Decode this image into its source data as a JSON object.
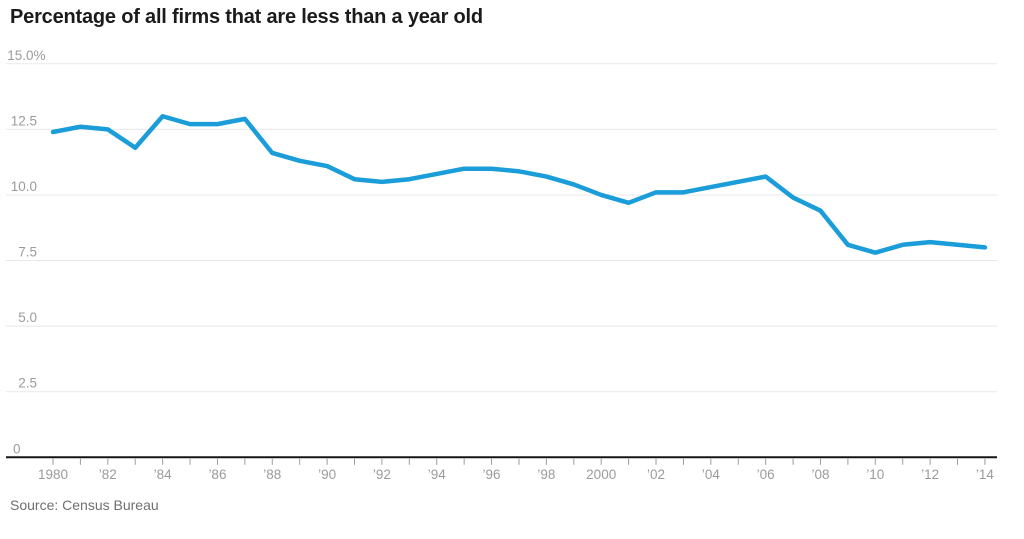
{
  "page": {
    "title": "Percentage of all firms that are less than a year old",
    "source": "Source: Census Bureau"
  },
  "colors": {
    "line": "#1a9dd9",
    "grid": "#e8e8e8",
    "axis": "#161616",
    "tick": "#9b9b9b",
    "tick_label": "#9b9b9b",
    "title_text": "#1b1b1b",
    "source_text": "#6f6f6f",
    "background": "#ffffff"
  },
  "chart_data": {
    "type": "line",
    "title": "Percentage of all firms that are less than a year old",
    "xlabel": "",
    "ylabel": "",
    "legend": "none",
    "grid": "horizontal",
    "ylim": [
      0,
      15
    ],
    "xlim": [
      1980,
      2014
    ],
    "x": [
      1980,
      1981,
      1982,
      1983,
      1984,
      1985,
      1986,
      1987,
      1988,
      1989,
      1990,
      1991,
      1992,
      1993,
      1994,
      1995,
      1996,
      1997,
      1998,
      1999,
      2000,
      2001,
      2002,
      2003,
      2004,
      2005,
      2006,
      2007,
      2008,
      2009,
      2010,
      2011,
      2012,
      2013,
      2014
    ],
    "values": [
      12.4,
      12.6,
      12.5,
      11.8,
      13.0,
      12.7,
      12.7,
      12.9,
      11.6,
      11.3,
      11.1,
      10.6,
      10.5,
      10.6,
      10.8,
      11.0,
      11.0,
      10.9,
      10.7,
      10.4,
      10.0,
      9.7,
      10.1,
      10.1,
      10.3,
      10.5,
      10.7,
      9.9,
      9.4,
      8.1,
      7.8,
      8.1,
      8.2,
      8.1,
      8.0
    ],
    "series_name": "Percentage of all firms less than a year old",
    "y_ticks": [
      {
        "value": 15,
        "label": "15.0%"
      },
      {
        "value": 12.5,
        "label": "12.5"
      },
      {
        "value": 10,
        "label": "10.0"
      },
      {
        "value": 7.5,
        "label": "7.5"
      },
      {
        "value": 5,
        "label": "5.0"
      },
      {
        "value": 2.5,
        "label": "2.5"
      },
      {
        "value": 0,
        "label": "0"
      }
    ],
    "x_tick_labels": [
      {
        "year": 1980,
        "label": "1980"
      },
      {
        "year": 1982,
        "label": "’82"
      },
      {
        "year": 1984,
        "label": "’84"
      },
      {
        "year": 1986,
        "label": "’86"
      },
      {
        "year": 1988,
        "label": "’88"
      },
      {
        "year": 1990,
        "label": "’90"
      },
      {
        "year": 1992,
        "label": "’92"
      },
      {
        "year": 1994,
        "label": "’94"
      },
      {
        "year": 1996,
        "label": "’96"
      },
      {
        "year": 1998,
        "label": "’98"
      },
      {
        "year": 2000,
        "label": "2000"
      },
      {
        "year": 2002,
        "label": "’02"
      },
      {
        "year": 2004,
        "label": "’04"
      },
      {
        "year": 2006,
        "label": "’06"
      },
      {
        "year": 2008,
        "label": "’08"
      },
      {
        "year": 2010,
        "label": "’10"
      },
      {
        "year": 2012,
        "label": "’12"
      },
      {
        "year": 2014,
        "label": "’14"
      }
    ],
    "source": "Source: Census Bureau"
  }
}
